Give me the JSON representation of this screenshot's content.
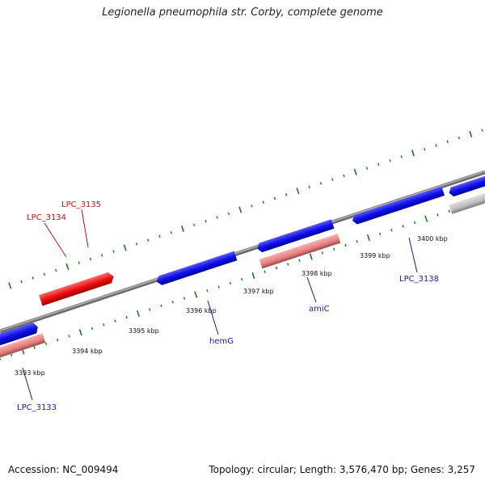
{
  "header": {
    "title": "Legionella pneumophila str. Corby, complete genome"
  },
  "footer": {
    "accession": "Accession: NC_009494",
    "topology": "Topology: circular",
    "length": "Length: 3,576,470 bp",
    "genes": "Genes: 3,257"
  },
  "colors": {
    "forward_gene": "#0a0ae6",
    "reverse_gene": "#e68080",
    "highlight_gene": "#ee1111",
    "other_gene": "#bbbbbb",
    "backbone": "#808080",
    "tick": "#1a7a1a",
    "label_blue": "#1a1aa0",
    "label_red": "#cc1111"
  },
  "ticks": [
    {
      "label": "3393 kbp"
    },
    {
      "label": "3394 kbp"
    },
    {
      "label": "3395 kbp"
    },
    {
      "label": "3396 kbp"
    },
    {
      "label": "3397 kbp"
    },
    {
      "label": "3398 kbp"
    },
    {
      "label": "3399 kbp"
    },
    {
      "label": "3400 kbp"
    }
  ],
  "genes": [
    {
      "name": "LPC_3133",
      "label": "LPC_3133",
      "strand": "+"
    },
    {
      "name": "LPC_3133_rev",
      "strand": "-"
    },
    {
      "name": "LPC_3134",
      "label": "LPC_3134",
      "strand": "+",
      "highlight": true
    },
    {
      "name": "LPC_3135",
      "label": "LPC_3135",
      "strand": "+",
      "highlight": true
    },
    {
      "name": "hemG",
      "label": "hemG",
      "strand": "+"
    },
    {
      "name": "amiC_fwd",
      "strand": "+"
    },
    {
      "name": "amiC",
      "label": "amiC",
      "strand": "-"
    },
    {
      "name": "LPC_3138",
      "label": "LPC_3138",
      "strand": "+"
    },
    {
      "name": "right_fwd",
      "strand": "+"
    },
    {
      "name": "right_other",
      "strand": "-"
    }
  ]
}
